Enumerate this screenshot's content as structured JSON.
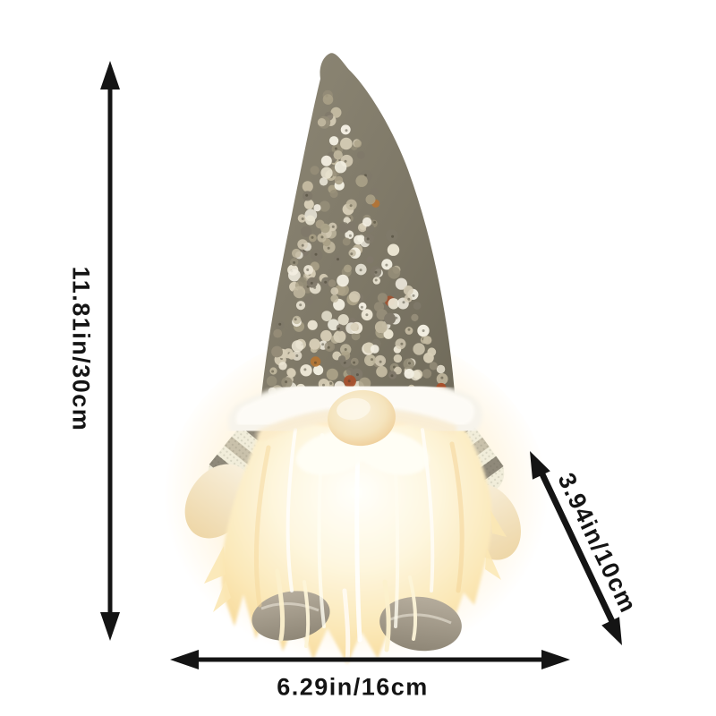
{
  "dimensions": {
    "height_label": "11.81in/30cm",
    "width_label": "6.29in/16cm",
    "depth_label": "3.94in/10cm"
  },
  "icons": {
    "height_arrow": "vertical-double-arrow-icon",
    "width_arrow": "horizontal-double-arrow-icon",
    "depth_arrow": "diagonal-double-arrow-icon"
  },
  "colors": {
    "background": "#ffffff",
    "arrow": "#141414",
    "label_text": "#141414",
    "hat_light": "#8e8876",
    "hat_dark": "#6e6959",
    "fur_trim": "#f7f4ec",
    "nose_center": "#f9f0da",
    "nose_edge": "#eeca92",
    "beard_center": "#fffffb",
    "beard_mid": "#fdf2cf",
    "beard_edge": "#f8dd9f",
    "glow": "#ffe2a8",
    "sleeve_base": "#f1edda",
    "sleeve_stripe_dark": "#8f897a",
    "sleeve_stripe_mid": "#c9c1ab",
    "hand": "#f6ead0",
    "foot_light": "#b5ac9c",
    "foot_dark": "#8f8777",
    "sequin_palette": [
      "#ece6d4",
      "#d6cdb6",
      "#c2b9a0",
      "#aba288",
      "#f3efe2",
      "#958d78",
      "#80796a"
    ],
    "sequin_accent": [
      "#b9742f",
      "#a84f2a",
      "#c99b3e"
    ]
  }
}
